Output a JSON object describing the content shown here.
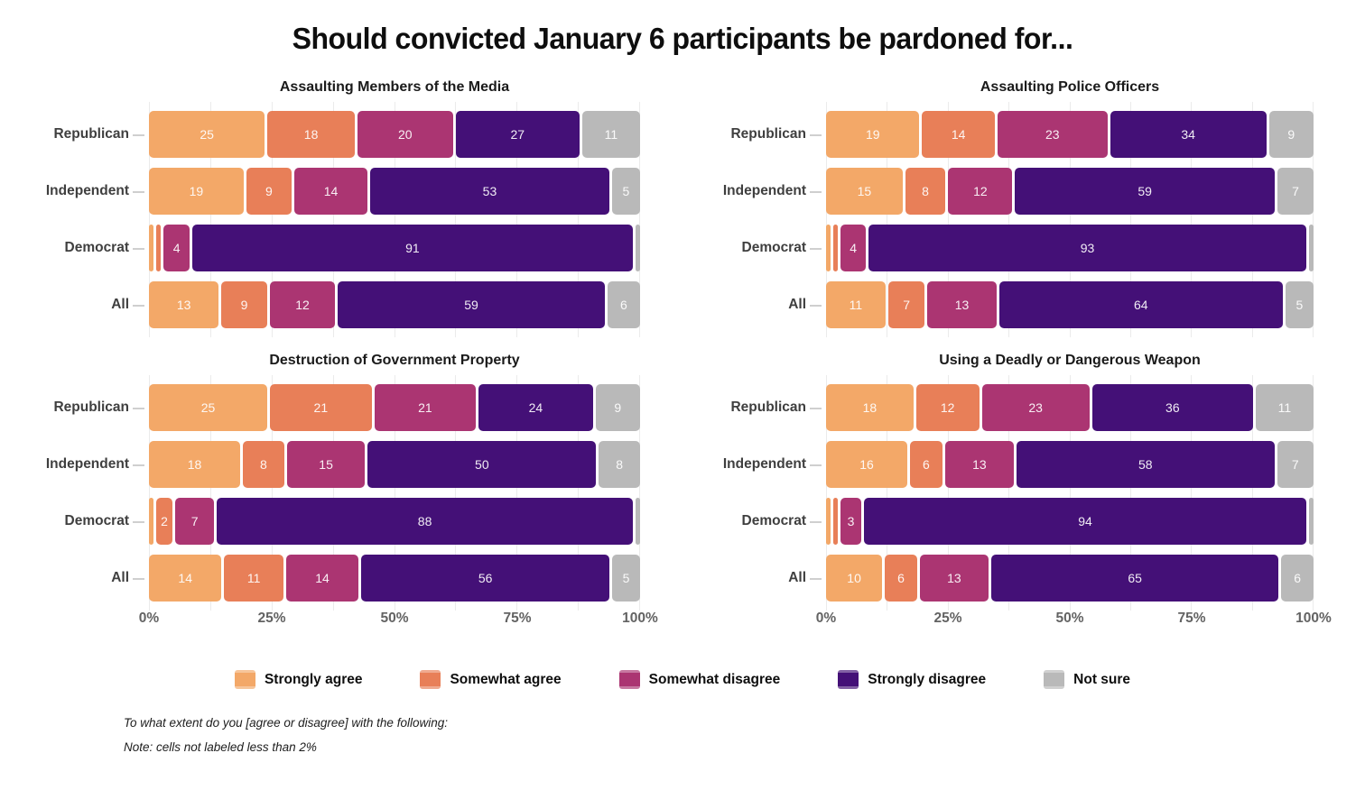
{
  "title": "Should convicted January 6 participants be pardoned for...",
  "palette": [
    {
      "key": "strongly-agree",
      "color": "#F3A868"
    },
    {
      "key": "somewhat-agree",
      "color": "#E87F58"
    },
    {
      "key": "somewhat-disagree",
      "color": "#AB3572"
    },
    {
      "key": "strongly-disagree",
      "color": "#441077"
    },
    {
      "key": "not-sure",
      "color": "#B9B9B9"
    }
  ],
  "legend": [
    {
      "label": "Strongly agree"
    },
    {
      "label": "Somewhat agree"
    },
    {
      "label": "Somewhat disagree"
    },
    {
      "label": "Strongly disagree"
    },
    {
      "label": "Not sure"
    }
  ],
  "x_axis": {
    "ticks": [
      {
        "label": "0%",
        "pos": 0
      },
      {
        "label": "25%",
        "pos": 25
      },
      {
        "label": "50%",
        "pos": 50
      },
      {
        "label": "75%",
        "pos": 75
      },
      {
        "label": "100%",
        "pos": 100
      }
    ],
    "minor_gridline_step_pct": 12.5
  },
  "label_threshold_note": "cells with value below 2 are not labeled",
  "chart_data": [
    {
      "type": "bar",
      "stacked": true,
      "orientation": "horizontal",
      "title": "Assaulting Members of the Media",
      "categories": [
        "Republican",
        "Independent",
        "Democrat",
        "All"
      ],
      "xlim": [
        0,
        100
      ],
      "units": "percent",
      "series": [
        {
          "name": "Strongly agree",
          "values": [
            25,
            19,
            1,
            13
          ]
        },
        {
          "name": "Somewhat agree",
          "values": [
            18,
            9,
            1,
            9
          ]
        },
        {
          "name": "Somewhat disagree",
          "values": [
            20,
            14,
            4,
            12
          ]
        },
        {
          "name": "Strongly disagree",
          "values": [
            27,
            53,
            91,
            59
          ]
        },
        {
          "name": "Not sure",
          "values": [
            11,
            5,
            1,
            6
          ]
        }
      ]
    },
    {
      "type": "bar",
      "stacked": true,
      "orientation": "horizontal",
      "title": "Assaulting Police Officers",
      "categories": [
        "Republican",
        "Independent",
        "Democrat",
        "All"
      ],
      "xlim": [
        0,
        100
      ],
      "units": "percent",
      "series": [
        {
          "name": "Strongly agree",
          "values": [
            19,
            15,
            1,
            11
          ]
        },
        {
          "name": "Somewhat agree",
          "values": [
            14,
            8,
            1,
            7
          ]
        },
        {
          "name": "Somewhat disagree",
          "values": [
            23,
            12,
            4,
            13
          ]
        },
        {
          "name": "Strongly disagree",
          "values": [
            34,
            59,
            93,
            64
          ]
        },
        {
          "name": "Not sure",
          "values": [
            9,
            7,
            1,
            5
          ]
        }
      ]
    },
    {
      "type": "bar",
      "stacked": true,
      "orientation": "horizontal",
      "title": "Destruction of Government Property",
      "categories": [
        "Republican",
        "Independent",
        "Democrat",
        "All"
      ],
      "xlim": [
        0,
        100
      ],
      "units": "percent",
      "series": [
        {
          "name": "Strongly agree",
          "values": [
            25,
            18,
            1,
            14
          ]
        },
        {
          "name": "Somewhat agree",
          "values": [
            21,
            8,
            2,
            11
          ]
        },
        {
          "name": "Somewhat disagree",
          "values": [
            21,
            15,
            7,
            14
          ]
        },
        {
          "name": "Strongly disagree",
          "values": [
            24,
            50,
            88,
            56
          ]
        },
        {
          "name": "Not sure",
          "values": [
            9,
            8,
            1,
            5
          ]
        }
      ]
    },
    {
      "type": "bar",
      "stacked": true,
      "orientation": "horizontal",
      "title": "Using a Deadly or Dangerous Weapon",
      "categories": [
        "Republican",
        "Independent",
        "Democrat",
        "All"
      ],
      "xlim": [
        0,
        100
      ],
      "units": "percent",
      "series": [
        {
          "name": "Strongly agree",
          "values": [
            18,
            16,
            1,
            10
          ]
        },
        {
          "name": "Somewhat agree",
          "values": [
            12,
            6,
            1,
            6
          ]
        },
        {
          "name": "Somewhat disagree",
          "values": [
            23,
            13,
            3,
            13
          ]
        },
        {
          "name": "Strongly disagree",
          "values": [
            36,
            58,
            94,
            65
          ]
        },
        {
          "name": "Not sure",
          "values": [
            11,
            7,
            1,
            6
          ]
        }
      ]
    }
  ],
  "footnotes": {
    "question": "To what extent do you [agree or disagree] with the following:",
    "note": "Note: cells not labeled less than 2%"
  }
}
